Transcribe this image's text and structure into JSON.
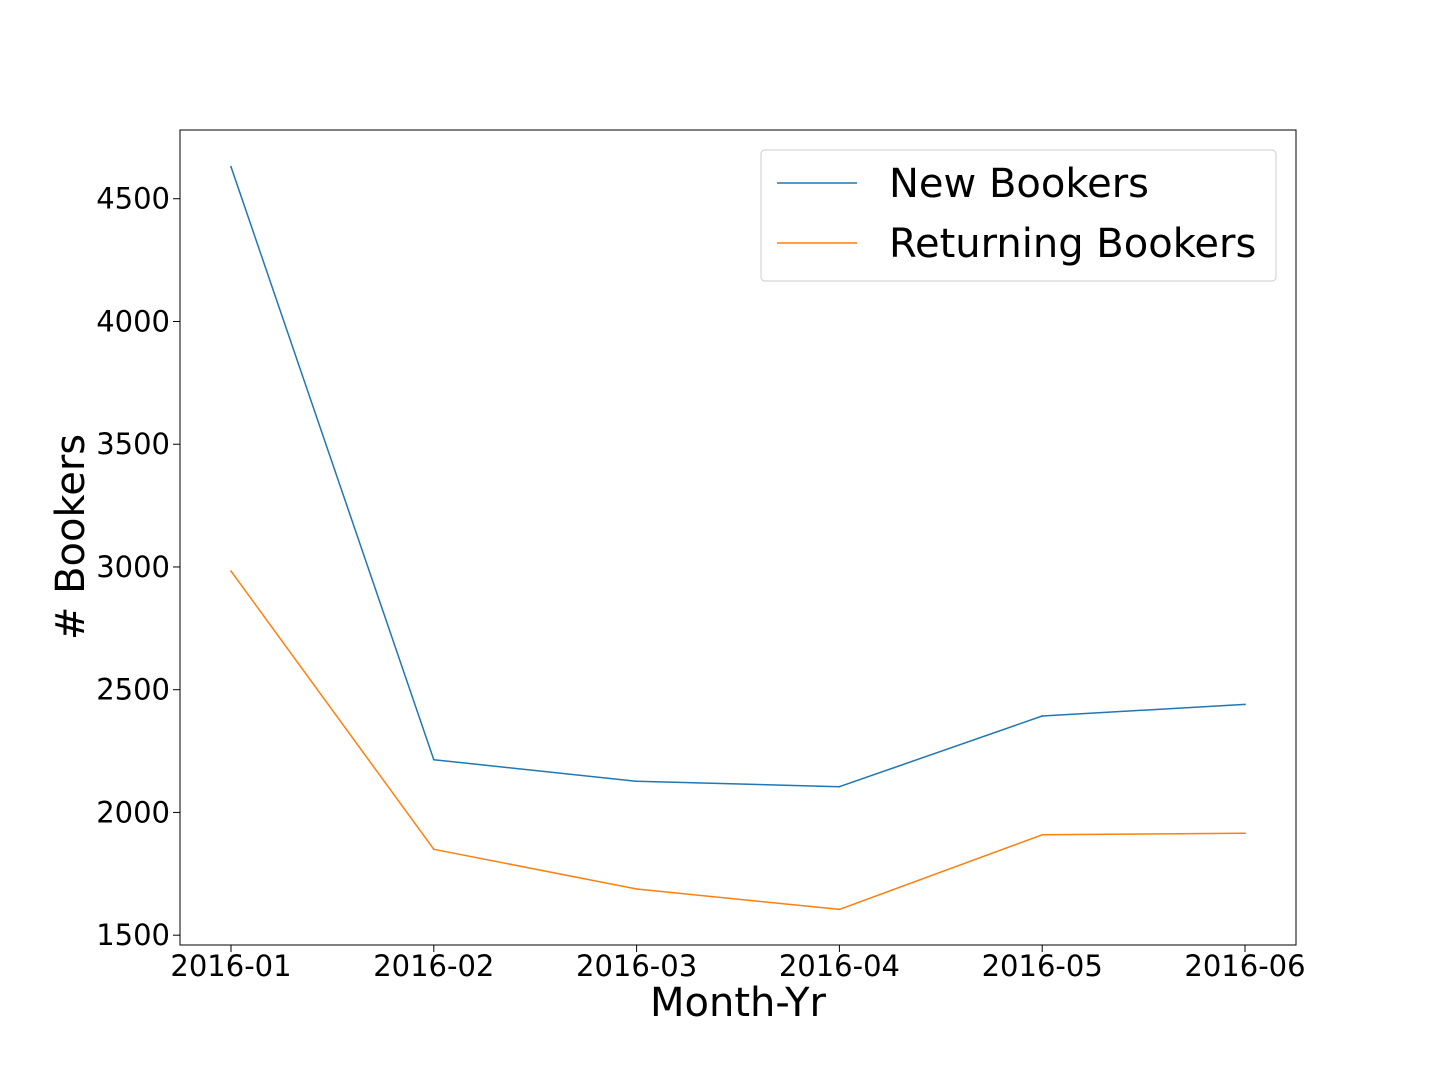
{
  "chart_data": {
    "type": "line",
    "title": "",
    "xlabel": "Month-Yr",
    "ylabel": "# Bookers",
    "categories": [
      "2016-01",
      "2016-02",
      "2016-03",
      "2016-04",
      "2016-05",
      "2016-06"
    ],
    "series": [
      {
        "name": "New Bookers",
        "color": "#1f77b4",
        "values": [
          4630,
          2215,
          2127,
          2105,
          2393,
          2440
        ]
      },
      {
        "name": "Returning Bookers",
        "color": "#ff7f0e",
        "values": [
          2983,
          1850,
          1688,
          1605,
          1909,
          1915
        ]
      }
    ],
    "yticks": [
      "1500",
      "2000",
      "2500",
      "3000",
      "3500",
      "4000",
      "4500"
    ],
    "ylim": [
      1460,
      4780
    ],
    "grid": false,
    "legend_position": "top-right"
  }
}
